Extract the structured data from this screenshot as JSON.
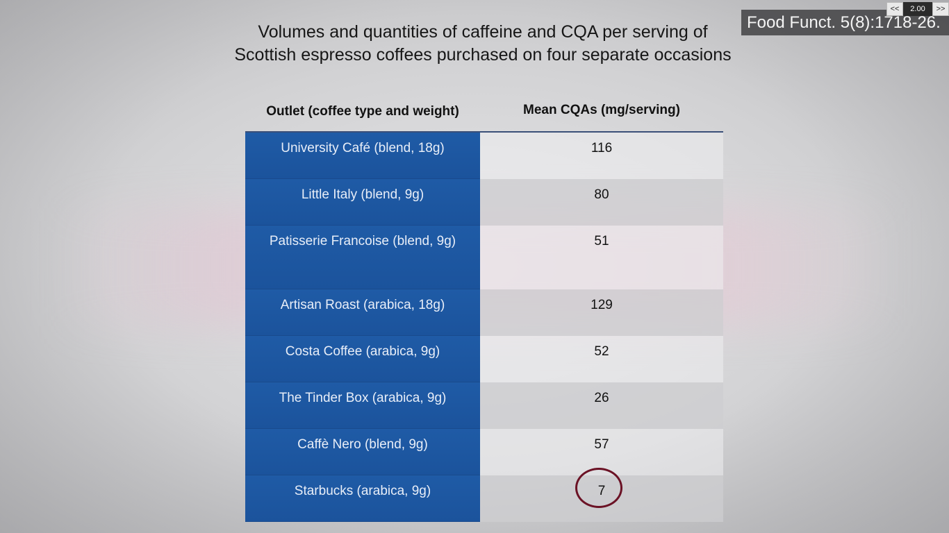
{
  "slide": {
    "title_line1": "Volumes and quantities of caffeine and CQA per serving of",
    "title_line2": "Scottish espresso coffees purchased on four separate occasions",
    "citation": "Food Funct. 5(8):1718-26."
  },
  "player": {
    "rewind_label": "<<",
    "speed": "2.00",
    "forward_label": ">>"
  },
  "table": {
    "headers": [
      "Outlet (coffee type and weight)",
      "Mean CQAs (mg/serving)"
    ],
    "rows": [
      {
        "outlet": "University Café (blend, 18g)",
        "cqa": "116"
      },
      {
        "outlet": "Little Italy (blend, 9g)",
        "cqa": "80"
      },
      {
        "outlet": "Patisserie Francoise (blend, 9g)",
        "cqa": "51"
      },
      {
        "outlet": "Artisan Roast (arabica, 18g)",
        "cqa": "129"
      },
      {
        "outlet": "Costa Coffee (arabica, 9g)",
        "cqa": "52"
      },
      {
        "outlet": "The Tinder Box (arabica, 9g)",
        "cqa": "26"
      },
      {
        "outlet": "Caffè Nero (blend, 9g)",
        "cqa": "57"
      },
      {
        "outlet": "Starbucks (arabica, 9g)",
        "cqa": "7"
      }
    ],
    "highlighted_row": 7
  },
  "colors": {
    "outlet_column": "#1f5ba6",
    "circle_highlight": "#6b1225",
    "citation_bg": "#464648"
  }
}
